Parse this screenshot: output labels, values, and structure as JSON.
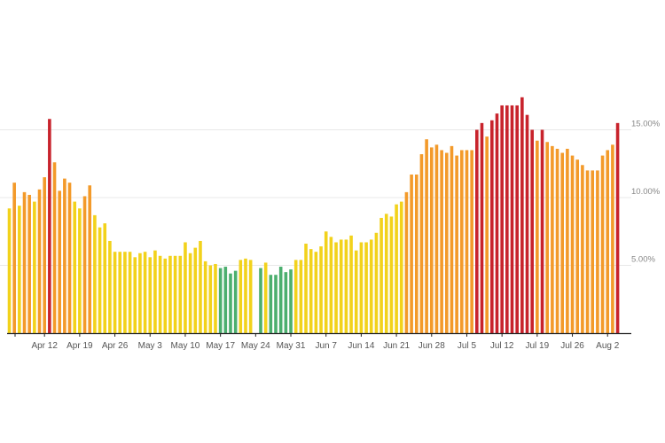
{
  "chart_data": {
    "type": "bar",
    "title": "",
    "xlabel": "",
    "ylabel": "",
    "ylim": [
      0,
      0.2
    ],
    "y_axis_position": "right",
    "grid": true,
    "legend": "none",
    "y_ticks": [
      {
        "value": 0.05,
        "label": "5.00%"
      },
      {
        "value": 0.1,
        "label": "10.00%"
      },
      {
        "value": 0.15,
        "label": "15.00%"
      }
    ],
    "x_ticks": [
      {
        "index": 7,
        "label": "Apr 12"
      },
      {
        "index": 14,
        "label": "Apr 19"
      },
      {
        "index": 21,
        "label": "Apr 26"
      },
      {
        "index": 28,
        "label": "May 3"
      },
      {
        "index": 35,
        "label": "May 10"
      },
      {
        "index": 42,
        "label": "May 17"
      },
      {
        "index": 49,
        "label": "May 24"
      },
      {
        "index": 56,
        "label": "May 31"
      },
      {
        "index": 63,
        "label": "Jun 7"
      },
      {
        "index": 70,
        "label": "Jun 14"
      },
      {
        "index": 77,
        "label": "Jun 21"
      },
      {
        "index": 84,
        "label": "Jun 28"
      },
      {
        "index": 91,
        "label": "Jul 5"
      },
      {
        "index": 98,
        "label": "Jul 12"
      },
      {
        "index": 105,
        "label": "Jul 19"
      },
      {
        "index": 112,
        "label": "Jul 26"
      },
      {
        "index": 119,
        "label": "Aug 2"
      }
    ],
    "values": [
      0.092,
      0.111,
      0.094,
      0.104,
      0.102,
      0.097,
      0.106,
      0.115,
      0.158,
      0.126,
      0.105,
      0.114,
      0.111,
      0.097,
      0.092,
      0.101,
      0.109,
      0.087,
      0.078,
      0.081,
      0.068,
      0.06,
      0.06,
      0.06,
      0.06,
      0.056,
      0.059,
      0.06,
      0.056,
      0.061,
      0.057,
      0.055,
      0.057,
      0.057,
      0.057,
      0.067,
      0.059,
      0.063,
      0.068,
      0.053,
      0.05,
      0.051,
      0.048,
      0.049,
      0.044,
      0.046,
      0.054,
      0.055,
      0.054,
      null,
      0.048,
      0.052,
      0.043,
      0.043,
      0.049,
      0.045,
      0.047,
      0.054,
      0.054,
      0.066,
      0.062,
      0.06,
      0.064,
      0.075,
      0.071,
      0.067,
      0.069,
      0.069,
      0.072,
      0.061,
      0.067,
      0.067,
      0.069,
      0.074,
      0.085,
      0.088,
      0.086,
      0.095,
      0.097,
      0.104,
      0.117,
      0.117,
      0.132,
      0.143,
      0.137,
      0.139,
      0.135,
      0.133,
      0.138,
      0.131,
      0.135,
      0.135,
      0.135,
      0.15,
      0.155,
      0.145,
      0.157,
      0.162,
      0.168,
      0.168,
      0.168,
      0.168,
      0.174,
      0.161,
      0.15,
      0.142,
      0.15,
      0.141,
      0.138,
      0.136,
      0.133,
      0.136,
      0.131,
      0.128,
      0.124,
      0.12,
      0.12,
      0.12,
      0.131,
      0.135,
      0.139,
      0.155
    ],
    "colors": {
      "green": "#4caf6e",
      "yellow": "#f2d21b",
      "orange": "#f39a2a",
      "red": "#c8232c",
      "axis": "#222222",
      "grid": "#e8e8e8"
    }
  }
}
